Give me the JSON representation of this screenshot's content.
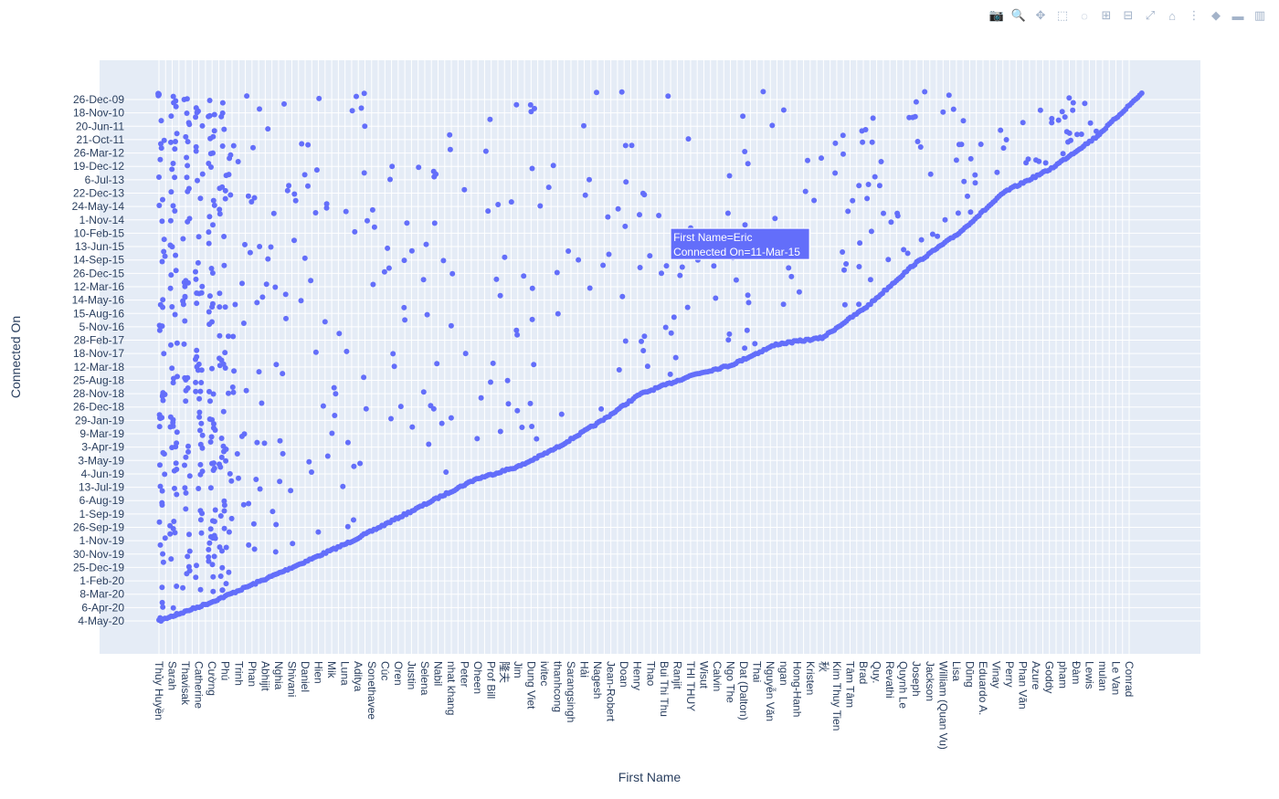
{
  "modebar": {
    "buttons": [
      {
        "name": "camera-icon",
        "glyph": "📷"
      },
      {
        "name": "zoom-icon",
        "glyph": "🔍"
      },
      {
        "name": "pan-icon",
        "glyph": "✥"
      },
      {
        "name": "box-select-icon",
        "glyph": "⬚"
      },
      {
        "name": "lasso-select-icon",
        "glyph": "◌"
      },
      {
        "name": "zoom-in-icon",
        "glyph": "⊞"
      },
      {
        "name": "zoom-out-icon",
        "glyph": "⊟"
      },
      {
        "name": "autoscale-icon",
        "glyph": "⤢"
      },
      {
        "name": "home-icon",
        "glyph": "⌂"
      },
      {
        "name": "spike-lines-icon",
        "glyph": "⋮"
      },
      {
        "name": "hover-closest-icon",
        "glyph": "◆"
      },
      {
        "name": "hover-compare-icon",
        "glyph": "▬"
      },
      {
        "name": "plotly-logo-icon",
        "glyph": "▥"
      }
    ]
  },
  "chart_data": {
    "type": "scatter",
    "xlabel": "First Name",
    "ylabel": "Connected On",
    "marker_color": "#636efa",
    "plot_bg": "#e5ecf6",
    "grid": true,
    "x_tick_labels": [
      "Thủy Huyền",
      "Sarah",
      "Thavisak",
      "Catherine",
      "Cường",
      "Phú",
      "Trinh",
      "Phan",
      "Abhijit",
      "Nghia",
      "Shivani",
      "Daniel",
      "Hien",
      "Mik",
      "Luna",
      "Aditya",
      "Sonethavee",
      "Cúc",
      "Oren",
      "Justin",
      "Selena",
      "Nabil",
      "nhat khang",
      "Peter",
      "Oheen",
      "Prof Bill",
      "隆夫",
      "Jim",
      "Dung Viet",
      "ivitec",
      "thanhcong",
      "Sarangsingh",
      "Hải",
      "Nagesh",
      "Jean-Robert",
      "Doan",
      "Henry",
      "Thao",
      "Bui Thi Thu",
      "Ranjit",
      "THI THUY",
      "Wisut",
      "Calvin",
      "Ngo The",
      "Dat (Dalton)",
      "Thai",
      "Nguyễn Văn",
      "ngan",
      "Hong-Hanh",
      "Kristen",
      "秋",
      "Kim Thuy Tien",
      "Tâm Tâm",
      "Brad",
      "Quy.",
      "Revathi",
      "Quynh Le",
      "Joseph",
      "Jackson",
      "William (Quan Vu)",
      "Lisa",
      "Dũng",
      "Eduardo A.",
      "Vinay",
      "Perry",
      "Phan Văn",
      "Azure",
      "Goddy",
      "pham",
      "Đàm",
      "Lewis",
      "mulan",
      "Le Van",
      "Conrad"
    ],
    "y_tick_labels": [
      "26-Dec-09",
      "18-Nov-10",
      "20-Jun-11",
      "21-Oct-11",
      "26-Mar-12",
      "19-Dec-12",
      "6-Jul-13",
      "22-Dec-13",
      "24-May-14",
      "1-Nov-14",
      "10-Feb-15",
      "13-Jun-15",
      "14-Sep-15",
      "26-Dec-15",
      "12-Mar-16",
      "14-May-16",
      "15-Aug-16",
      "5-Nov-16",
      "28-Feb-17",
      "18-Nov-17",
      "12-Mar-18",
      "25-Aug-18",
      "28-Nov-18",
      "26-Dec-18",
      "29-Jan-19",
      "9-Mar-19",
      "3-Apr-19",
      "3-May-19",
      "4-Jun-19",
      "13-Jul-19",
      "6-Aug-19",
      "1-Sep-19",
      "26-Sep-19",
      "1-Nov-19",
      "30-Nov-19",
      "25-Dec-19",
      "1-Feb-20",
      "8-Mar-20",
      "6-Apr-20",
      "4-May-20"
    ],
    "y_order": "top-oldest",
    "hover": {
      "line1": "First Name=Eric",
      "line2": "Connected On=11-Mar-15",
      "x_index": 38.5,
      "y_index": 10.8
    }
  }
}
